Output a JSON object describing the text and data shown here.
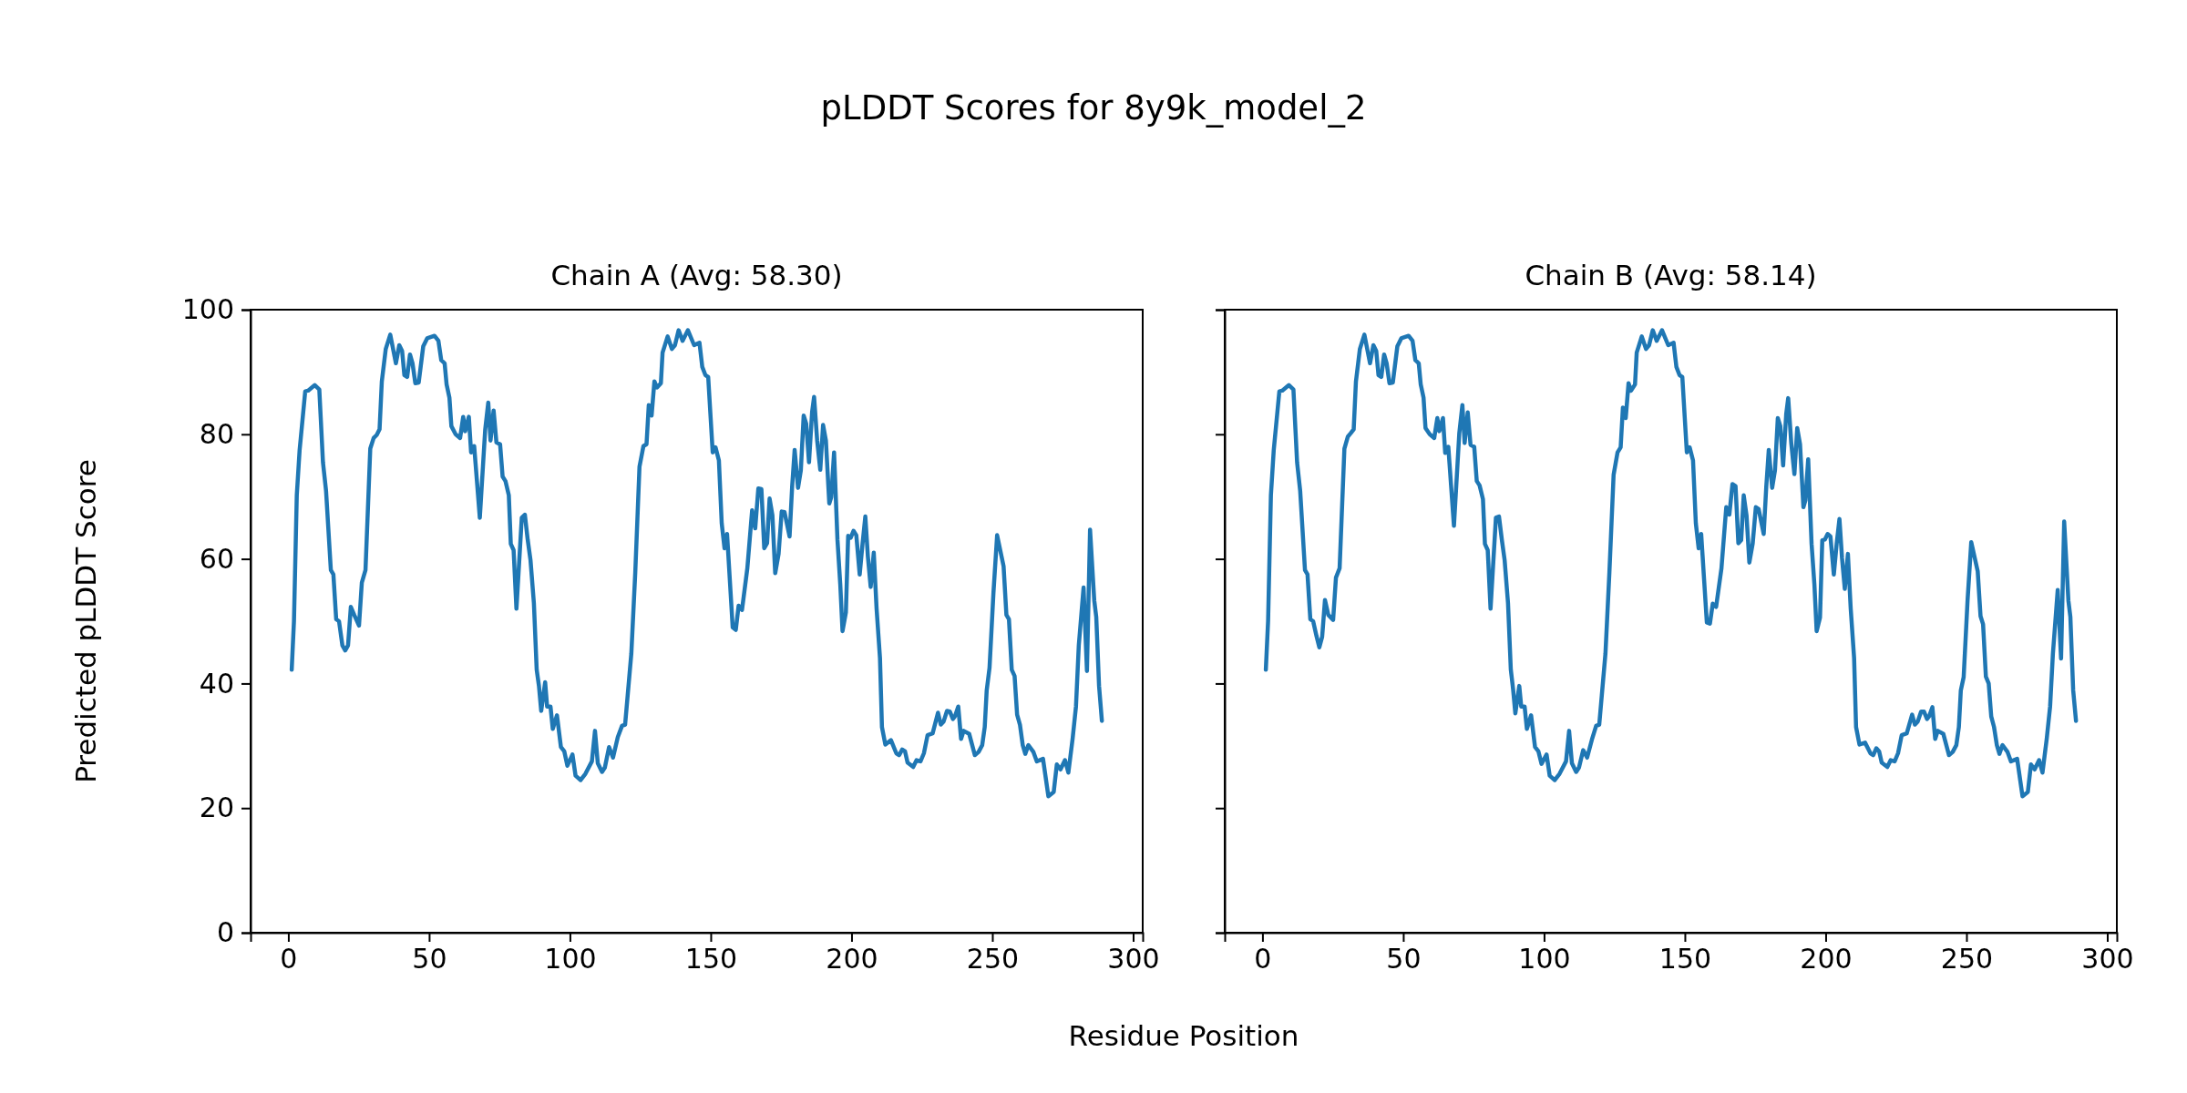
{
  "chart_data": [
    {
      "type": "line",
      "title": "Chain A (Avg: 58.30)",
      "ylabel": "Predicted pLDDT Score",
      "xlabel": "Residue Position",
      "annotations": [
        "pLDDT Scores for 8y9k_model_2"
      ],
      "xlim": [
        -13.4,
        303.4
      ],
      "ylim": [
        0,
        100
      ],
      "xticks": [
        0,
        50,
        100,
        150,
        200,
        250,
        300
      ],
      "yticks": [
        0,
        20,
        40,
        60,
        80,
        100
      ],
      "series": [
        {
          "color": "#1f77b4",
          "x": [
            1.2,
            2,
            3,
            4,
            6,
            7,
            9.4,
            11,
            12.3,
            13.4,
            15.1,
            16,
            17,
            18,
            19.2,
            20.2,
            21.2,
            22.2,
            23.4,
            25.1,
            26.1,
            27.4,
            29.1,
            30.3,
            31.4,
            32.4,
            33.2,
            34.6,
            36.2,
            38.2,
            39.4,
            40.4,
            41.2,
            42.2,
            43.2,
            44.1,
            45.1,
            46.3,
            47.9,
            49.3,
            51.9,
            53.3,
            54.3,
            55.5,
            56.2,
            57.2,
            57.9,
            59.4,
            61,
            62.1,
            62.8,
            64.1,
            64.9,
            66,
            68,
            69.9,
            71,
            71.8,
            72.9,
            73.9,
            75.2,
            76.1,
            77.1,
            78.3,
            79,
            80,
            81,
            82.9,
            84,
            85,
            86,
            87.2,
            88.2,
            89,
            89.8,
            91.2,
            91.9,
            93.1,
            93.9,
            95.4,
            96.8,
            98,
            99.1,
            100.9,
            102,
            103.8,
            105.5,
            107.8,
            108.9,
            109.9,
            111.4,
            112.4,
            113.9,
            115.3,
            117,
            118.5,
            119.6,
            121.8,
            123.2,
            124.7,
            126.1,
            127.2,
            128,
            129,
            130,
            130.9,
            132.3,
            132.9,
            134.7,
            136.2,
            137.3,
            138.6,
            140,
            141.9,
            144.1,
            146,
            147,
            148.1,
            149.1,
            150.7,
            151.7,
            152.9,
            153.9,
            154.9,
            155.8,
            157.8,
            158.9,
            159.9,
            161.1,
            163,
            164.7,
            165.8,
            166.9,
            168,
            169,
            170,
            170.9,
            171.9,
            172.9,
            174.1,
            175.2,
            176.2,
            178,
            178.9,
            179.8,
            181,
            182,
            183,
            183.9,
            184.9,
            186,
            186.7,
            187.8,
            188.9,
            189.9,
            190.9,
            192.1,
            192.8,
            193.8,
            195,
            196,
            196.8,
            198,
            198.8,
            199.7,
            200.7,
            201.7,
            202.9,
            203.9,
            204.9,
            205.8,
            206.8,
            207.9,
            208.9,
            210.1,
            210.8,
            212,
            214,
            215.9,
            216.9,
            218,
            219,
            219.9,
            221.9,
            223.1,
            224.5,
            225.7,
            227,
            228.8,
            230.7,
            231.7,
            232.7,
            233.9,
            234.9,
            236,
            236.7,
            237.9,
            238.9,
            239.8,
            241.8,
            243.8,
            245.1,
            246.4,
            247.3,
            248,
            249,
            250.4,
            251.7,
            254,
            255,
            255.9,
            256.9,
            257.9,
            258.8,
            259.8,
            260.8,
            261.7,
            262.8,
            264.6,
            265.8,
            268,
            269.9,
            271.8,
            272.9,
            274.2,
            275.8,
            277,
            278.5,
            279.7,
            280.7,
            282.4,
            283.6,
            284.7,
            286.2,
            286.9,
            287.9,
            288.9
          ],
          "values": [
            42.2,
            50,
            70.2,
            77.4,
            86.9,
            87,
            87.9,
            87.2,
            75.5,
            70.9,
            58.2,
            57.5,
            50.3,
            50,
            46.1,
            45.3,
            46.1,
            52.3,
            51,
            49.3,
            56.2,
            58.2,
            77.7,
            79.4,
            79.9,
            80.8,
            88.5,
            93.7,
            96,
            91.4,
            94.3,
            93.4,
            89.5,
            89.2,
            92.8,
            91.4,
            88.2,
            88.3,
            94.1,
            95.4,
            95.8,
            95,
            91.9,
            91.4,
            88,
            85.9,
            81.3,
            80,
            79.4,
            82.8,
            80.5,
            82.8,
            77.1,
            78.1,
            66.6,
            80.7,
            85.1,
            79,
            83.8,
            78.7,
            78.4,
            73.2,
            72.5,
            70.2,
            62.4,
            61.4,
            52,
            66.6,
            67.1,
            63.1,
            59.8,
            52.9,
            42.2,
            39.6,
            35.6,
            40.2,
            36.3,
            36.3,
            32.7,
            34.9,
            29.8,
            29.1,
            26.8,
            28.6,
            25.2,
            24.5,
            25.5,
            27.5,
            32.4,
            27.2,
            25.8,
            26.5,
            29.8,
            28.1,
            31.4,
            33.2,
            33.4,
            44.8,
            57.8,
            74.8,
            78.1,
            78.4,
            84.7,
            83,
            88.5,
            87.5,
            88.2,
            93.1,
            95.7,
            93.7,
            94.3,
            96.7,
            95,
            96.7,
            94.3,
            94.7,
            90.8,
            89.5,
            89.2,
            77.1,
            77.9,
            75.8,
            65.7,
            61.7,
            64,
            49,
            48.6,
            52.5,
            51.8,
            58.5,
            67.8,
            64.9,
            71.3,
            71.2,
            61.7,
            62.5,
            69.7,
            67,
            57.7,
            60.8,
            67.6,
            67.5,
            63.6,
            71.5,
            77.5,
            71.4,
            74.2,
            83,
            81.7,
            75.5,
            83.6,
            86,
            79,
            74.3,
            81.5,
            79,
            68.9,
            69.9,
            77.1,
            63.1,
            55.9,
            48.4,
            51.4,
            63.7,
            63.4,
            64.5,
            63.8,
            57.5,
            62.4,
            66.8,
            60.4,
            55.5,
            61,
            52,
            44.1,
            33,
            30.2,
            30.9,
            28.8,
            28.5,
            29.4,
            29.1,
            27.3,
            26.6,
            27.7,
            27.5,
            28.8,
            31.7,
            32,
            35.3,
            33.4,
            33.9,
            35.6,
            35.5,
            34.3,
            34.7,
            36.3,
            31.1,
            32.4,
            31.9,
            28.5,
            29,
            30.1,
            33,
            38.9,
            42.5,
            54.6,
            63.8,
            58.8,
            51,
            50.3,
            42.2,
            41.2,
            35,
            33.4,
            30.1,
            28.7,
            30.1,
            29,
            27.5,
            27.9,
            21.9,
            22.6,
            27,
            26.2,
            27.7,
            25.7,
            31.1,
            36.3,
            46.1,
            55.4,
            42,
            64.7,
            53.3,
            50.7,
            39.6,
            34
          ]
        }
      ]
    },
    {
      "type": "line",
      "title": "Chain B (Avg: 58.14)",
      "tick_labels": "x",
      "xlim": [
        -13.4,
        303.4
      ],
      "ylim": [
        0,
        100
      ],
      "xticks": [
        0,
        50,
        100,
        150,
        200,
        250,
        300
      ],
      "yticks": [
        0,
        20,
        40,
        60,
        80,
        100
      ],
      "series": [
        {
          "color": "#1f77b4",
          "x": [
            1.2,
            2,
            3,
            4,
            6,
            7,
            9.4,
            11,
            12.3,
            13.4,
            15.1,
            16,
            17,
            18,
            19.2,
            20.2,
            21.2,
            22.2,
            23.4,
            25.1,
            26.1,
            27.4,
            29.1,
            30.3,
            31.4,
            32.4,
            33.2,
            34.6,
            36.2,
            38.2,
            39.4,
            40.4,
            41.2,
            42.2,
            43.2,
            44.1,
            45.1,
            46.3,
            47.9,
            49.3,
            51.9,
            53.3,
            54.3,
            55.5,
            56.2,
            57.2,
            57.9,
            59.4,
            61,
            62.1,
            62.8,
            64.1,
            64.9,
            66,
            68,
            69.9,
            71,
            71.8,
            72.9,
            73.9,
            75.2,
            76.1,
            77.1,
            78.3,
            79,
            80,
            81,
            82.9,
            84,
            85,
            86,
            87.2,
            88.2,
            89,
            89.8,
            91.2,
            91.9,
            93.1,
            93.9,
            95.4,
            96.8,
            98,
            99.1,
            100.9,
            102,
            103.8,
            105.5,
            107.8,
            108.9,
            109.9,
            111.4,
            112.4,
            113.9,
            115.3,
            117,
            118.5,
            119.6,
            121.8,
            123.2,
            124.7,
            126.1,
            127.2,
            128,
            129,
            130,
            130.9,
            132.3,
            132.9,
            134.7,
            136.2,
            137.3,
            138.6,
            140,
            141.9,
            144.1,
            146,
            147,
            148.1,
            149.1,
            150.7,
            151.7,
            152.9,
            153.9,
            154.9,
            155.8,
            157.8,
            158.9,
            159.9,
            161.1,
            163,
            164.7,
            165.8,
            166.9,
            168,
            169,
            170,
            170.9,
            171.9,
            172.9,
            174.1,
            175.2,
            176.2,
            178,
            178.9,
            179.8,
            181,
            182,
            183,
            183.9,
            184.9,
            186,
            186.7,
            187.8,
            188.9,
            189.9,
            190.9,
            192.1,
            192.8,
            193.8,
            195,
            196,
            196.8,
            198,
            198.8,
            199.7,
            200.7,
            201.7,
            202.9,
            203.9,
            204.9,
            205.8,
            206.8,
            207.9,
            208.9,
            210.1,
            210.8,
            212,
            214,
            215.9,
            216.9,
            218,
            219,
            219.9,
            221.9,
            223.1,
            224.5,
            225.7,
            227,
            228.8,
            230.7,
            231.7,
            232.7,
            233.9,
            234.9,
            236,
            236.7,
            237.9,
            238.9,
            239.8,
            241.8,
            243.8,
            245.1,
            246.4,
            247.3,
            248,
            249,
            250.4,
            251.7,
            254,
            255,
            255.9,
            256.9,
            257.9,
            258.8,
            259.8,
            260.8,
            261.7,
            262.8,
            264.6,
            265.8,
            268,
            269.9,
            271.8,
            272.9,
            274.2,
            275.8,
            277,
            278.5,
            279.7,
            280.7,
            282.4,
            283.6,
            284.7,
            286.2,
            286.9,
            287.9,
            288.9
          ],
          "values": [
            42.2,
            50,
            70.2,
            77.4,
            86.9,
            87,
            87.9,
            87.2,
            75.5,
            70.9,
            58.2,
            57.5,
            50.3,
            50,
            47.6,
            45.8,
            47.5,
            53.4,
            51,
            50.2,
            57,
            58.5,
            77.7,
            79.6,
            80.2,
            80.8,
            88.5,
            93.7,
            96,
            91.4,
            94.3,
            93.4,
            89.5,
            89.2,
            92.8,
            91.4,
            88.2,
            88.3,
            94.1,
            95.4,
            95.8,
            95,
            91.9,
            91.4,
            88,
            85.9,
            81,
            80,
            79.4,
            82.6,
            80.5,
            82.6,
            77,
            78,
            65.3,
            80.2,
            84.7,
            78.6,
            83.5,
            78.3,
            78,
            72.5,
            71.8,
            69.6,
            62.4,
            61.4,
            52,
            66.6,
            66.8,
            63.1,
            59.8,
            52.9,
            42.2,
            39.1,
            35.2,
            39.6,
            36.3,
            36.3,
            32.7,
            34.9,
            29.8,
            29.1,
            27.1,
            28.6,
            25.2,
            24.5,
            25.5,
            27.5,
            32.4,
            27.2,
            25.8,
            26.5,
            29.3,
            28.1,
            31,
            33.2,
            33.4,
            44.8,
            57.8,
            73.5,
            77.1,
            77.9,
            84.3,
            82.6,
            88.2,
            87,
            88,
            93.1,
            95.7,
            93.7,
            94.3,
            96.7,
            95,
            96.7,
            94.3,
            94.7,
            90.8,
            89.5,
            89.2,
            77.1,
            77.9,
            75.8,
            65.7,
            61.7,
            64,
            49.8,
            49.6,
            52.8,
            52.3,
            58.5,
            68.3,
            67.1,
            72,
            71.7,
            62.5,
            63,
            70.2,
            67,
            59.4,
            62.5,
            68.3,
            68,
            64,
            71.5,
            77.5,
            71.4,
            74.2,
            82.6,
            81.3,
            75,
            83.3,
            85.8,
            78.5,
            73.6,
            81,
            78.4,
            68.3,
            69.4,
            76,
            62.4,
            55.9,
            48.4,
            50.6,
            63,
            63.1,
            64,
            63.6,
            57.5,
            62.4,
            66.4,
            60.2,
            55.2,
            60.8,
            52,
            44.1,
            33,
            30.2,
            30.5,
            28.8,
            28.5,
            29.6,
            29.1,
            27.3,
            26.6,
            27.7,
            27.5,
            28.8,
            31.7,
            32,
            35,
            33.4,
            33.9,
            35.5,
            35.5,
            34.3,
            34.7,
            36.2,
            31.1,
            32.4,
            31.9,
            28.5,
            29,
            30.1,
            33,
            38.9,
            41,
            53.4,
            62.7,
            58,
            50.8,
            49.5,
            41.1,
            40,
            34.7,
            33,
            30.1,
            28.7,
            30.1,
            29,
            27.5,
            27.9,
            21.9,
            22.6,
            27,
            26.2,
            27.7,
            25.7,
            31.1,
            36.3,
            44.8,
            55,
            44,
            66,
            53.3,
            50.7,
            38.9,
            34
          ]
        }
      ]
    }
  ]
}
